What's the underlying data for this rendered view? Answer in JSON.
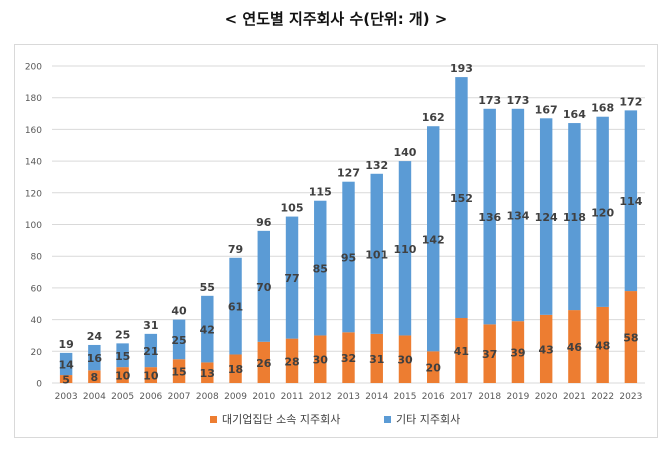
{
  "header": {
    "title": "< 연도별 지주회사 수(단위: 개) >"
  },
  "colors": {
    "series1": "#ED7D31",
    "series2": "#5B9BD5",
    "grid": "#d9d9d9",
    "axis_text": "#595959",
    "label_text": "#404040"
  },
  "chart_data": {
    "type": "bar",
    "stacked": true,
    "title": "< 연도별 지주회사 수(단위: 개) >",
    "xlabel": "",
    "ylabel": "",
    "ylim": [
      0,
      200
    ],
    "yticks": [
      0,
      20,
      40,
      60,
      80,
      100,
      120,
      140,
      160,
      180,
      200
    ],
    "yticks_text": [
      "0",
      "20",
      "40",
      "60",
      "80",
      "100",
      "120",
      "140",
      "160",
      "180",
      "200"
    ],
    "grid": true,
    "legend_position": "bottom",
    "categories": [
      "2003",
      "2004",
      "2005",
      "2006",
      "2007",
      "2008",
      "2009",
      "2010",
      "2011",
      "2012",
      "2013",
      "2014",
      "2015",
      "2016",
      "2017",
      "2018",
      "2019",
      "2020",
      "2021",
      "2022",
      "2023"
    ],
    "series": [
      {
        "name": "대기업집단 소속 지주회사",
        "values": [
          5,
          8,
          10,
          10,
          15,
          13,
          18,
          26,
          28,
          30,
          32,
          31,
          30,
          20,
          41,
          37,
          39,
          43,
          46,
          48,
          58
        ]
      },
      {
        "name": "기타 지주회사",
        "values": [
          14,
          16,
          15,
          21,
          25,
          42,
          61,
          70,
          77,
          85,
          95,
          101,
          110,
          142,
          152,
          136,
          134,
          124,
          118,
          120,
          114
        ]
      }
    ],
    "totals": [
      19,
      24,
      25,
      31,
      40,
      55,
      79,
      96,
      105,
      115,
      127,
      132,
      140,
      162,
      193,
      173,
      173,
      167,
      164,
      168,
      172
    ]
  }
}
